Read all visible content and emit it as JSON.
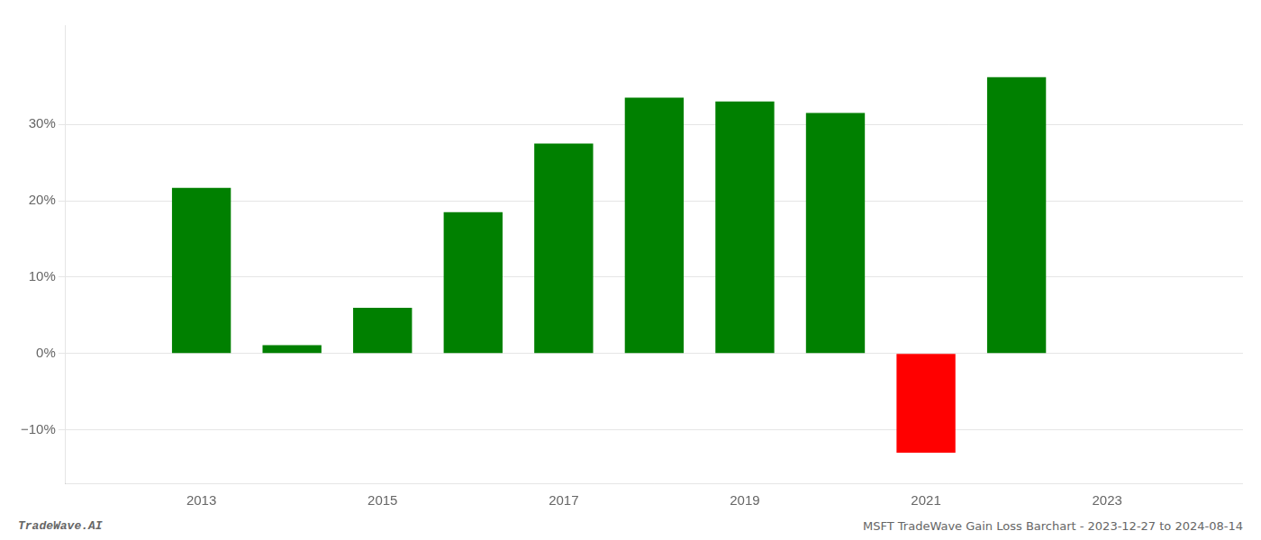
{
  "chart_data": {
    "type": "bar",
    "x": [
      2013,
      2014,
      2015,
      2016,
      2017,
      2018,
      2019,
      2020,
      2021,
      2022
    ],
    "values": [
      21.7,
      1.1,
      6.0,
      18.5,
      27.5,
      33.5,
      33.0,
      31.5,
      -13.0,
      36.2
    ],
    "colors": [
      "#008000",
      "#008000",
      "#008000",
      "#008000",
      "#008000",
      "#008000",
      "#008000",
      "#008000",
      "#ff0000",
      "#008000"
    ],
    "xlim": [
      2011.5,
      2024.5
    ],
    "xticks": [
      2013,
      2015,
      2017,
      2019,
      2021,
      2023
    ],
    "ylim": [
      -17,
      43
    ],
    "yticks": [
      {
        "value": -10,
        "label": "−10%"
      },
      {
        "value": 0,
        "label": "0%"
      },
      {
        "value": 10,
        "label": "10%"
      },
      {
        "value": 20,
        "label": "20%"
      },
      {
        "value": 30,
        "label": "30%"
      }
    ],
    "grid": true,
    "annotations": [
      "TradeWave.AI",
      "MSFT TradeWave Gain Loss Barchart - 2023-12-27 to 2024-08-14"
    ]
  }
}
